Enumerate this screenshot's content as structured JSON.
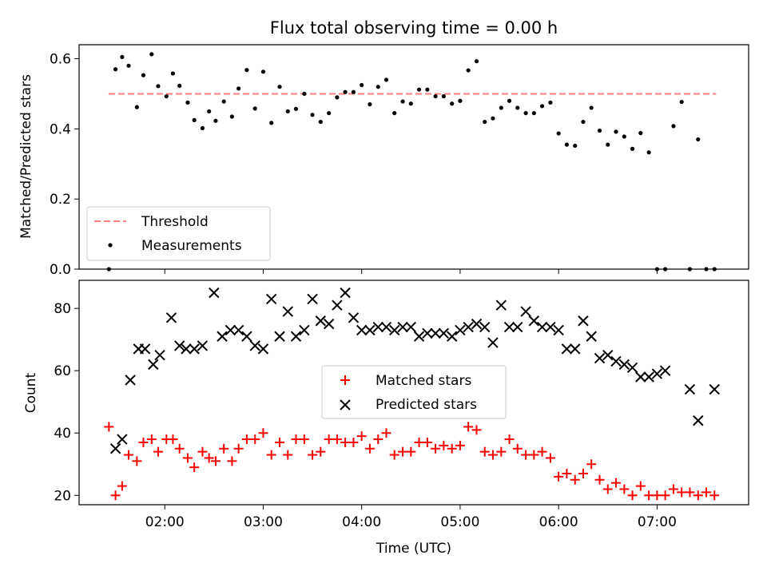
{
  "title": "Flux total observing time = 0.00 h",
  "chart_data": [
    {
      "type": "scatter",
      "ylabel": "Matched/Predicted stars",
      "xlabel": "",
      "xlim": [
        1.13,
        7.93
      ],
      "ylim": [
        0.0,
        0.64
      ],
      "yticks": [
        0.0,
        0.2,
        0.4,
        0.6
      ],
      "ytick_labels": [
        "0.0",
        "0.2",
        "0.4",
        "0.6"
      ],
      "legend_position": "lower-left",
      "threshold": {
        "name": "Threshold",
        "value": 0.5,
        "x": [
          1.43,
          7.6
        ],
        "color": "#ff7f7f",
        "style": "dashed"
      },
      "series": [
        {
          "name": "Measurements",
          "color": "#000000",
          "x": [
            1.433,
            1.5,
            1.567,
            1.633,
            1.717,
            1.783,
            1.867,
            1.933,
            2.017,
            2.083,
            2.15,
            2.233,
            2.3,
            2.383,
            2.45,
            2.517,
            2.6,
            2.683,
            2.75,
            2.833,
            2.917,
            3.0,
            3.083,
            3.167,
            3.25,
            3.333,
            3.417,
            3.5,
            3.583,
            3.667,
            3.75,
            3.833,
            3.917,
            4.0,
            4.083,
            4.167,
            4.25,
            4.333,
            4.417,
            4.5,
            4.583,
            4.667,
            4.75,
            4.833,
            4.917,
            5.0,
            5.083,
            5.167,
            5.25,
            5.333,
            5.417,
            5.5,
            5.583,
            5.667,
            5.75,
            5.833,
            5.917,
            6.0,
            6.083,
            6.167,
            6.25,
            6.333,
            6.417,
            6.5,
            6.583,
            6.667,
            6.75,
            6.833,
            6.917,
            7.0,
            7.083,
            7.167,
            7.25,
            7.333,
            7.417,
            7.5,
            7.583
          ],
          "y": [
            0.0,
            0.57,
            0.605,
            0.58,
            0.462,
            0.553,
            0.613,
            0.522,
            0.493,
            0.558,
            0.523,
            0.475,
            0.425,
            0.402,
            0.45,
            0.423,
            0.478,
            0.435,
            0.515,
            0.568,
            0.458,
            0.563,
            0.417,
            0.52,
            0.45,
            0.457,
            0.5,
            0.44,
            0.42,
            0.445,
            0.49,
            0.505,
            0.505,
            0.525,
            0.47,
            0.52,
            0.54,
            0.445,
            0.478,
            0.472,
            0.512,
            0.512,
            0.493,
            0.493,
            0.472,
            0.48,
            0.567,
            0.593,
            0.42,
            0.43,
            0.46,
            0.48,
            0.46,
            0.445,
            0.445,
            0.465,
            0.475,
            0.387,
            0.355,
            0.352,
            0.42,
            0.46,
            0.395,
            0.355,
            0.392,
            0.378,
            0.343,
            0.388,
            0.333,
            0.0,
            0.0,
            0.408,
            0.477,
            0.0,
            0.37,
            0.0,
            0.0
          ]
        }
      ]
    },
    {
      "type": "scatter",
      "ylabel": "Count",
      "xlabel": "Time (UTC)",
      "xlim": [
        1.13,
        7.93
      ],
      "ylim": [
        17,
        89
      ],
      "yticks": [
        20,
        40,
        60,
        80
      ],
      "ytick_labels": [
        "20",
        "40",
        "60",
        "80"
      ],
      "xticks": [
        2,
        3,
        4,
        5,
        6,
        7
      ],
      "xtick_labels": [
        "02:00",
        "03:00",
        "04:00",
        "05:00",
        "06:00",
        "07:00"
      ],
      "legend_position": "center",
      "series": [
        {
          "name": "Matched stars",
          "color": "#ff0000",
          "marker": "plus",
          "x": [
            1.433,
            1.5,
            1.567,
            1.633,
            1.717,
            1.783,
            1.867,
            1.933,
            2.017,
            2.083,
            2.15,
            2.233,
            2.3,
            2.383,
            2.45,
            2.517,
            2.6,
            2.683,
            2.75,
            2.833,
            2.917,
            3.0,
            3.083,
            3.167,
            3.25,
            3.333,
            3.417,
            3.5,
            3.583,
            3.667,
            3.75,
            3.833,
            3.917,
            4.0,
            4.083,
            4.167,
            4.25,
            4.333,
            4.417,
            4.5,
            4.583,
            4.667,
            4.75,
            4.833,
            4.917,
            5.0,
            5.083,
            5.167,
            5.25,
            5.333,
            5.417,
            5.5,
            5.583,
            5.667,
            5.75,
            5.833,
            5.917,
            6.0,
            6.083,
            6.167,
            6.25,
            6.333,
            6.417,
            6.5,
            6.583,
            6.667,
            6.75,
            6.833,
            6.917,
            7.0,
            7.083,
            7.167,
            7.25,
            7.333,
            7.417,
            7.5,
            7.583
          ],
          "y": [
            42,
            20,
            23,
            33,
            31,
            37,
            38,
            34,
            38,
            38,
            35,
            32,
            29,
            34,
            32,
            31,
            35,
            31,
            35,
            38,
            38,
            40,
            33,
            37,
            33,
            38,
            38,
            33,
            34,
            38,
            38,
            37,
            37,
            39,
            35,
            38,
            40,
            33,
            34,
            34,
            37,
            37,
            35,
            36,
            35,
            36,
            42,
            41,
            34,
            33,
            34,
            38,
            35,
            33,
            33,
            34,
            32,
            26,
            27,
            25,
            27,
            30,
            25,
            22,
            24,
            22,
            20,
            23,
            20,
            20,
            20,
            22,
            21,
            21,
            20,
            21,
            20
          ]
        },
        {
          "name": "Predicted stars",
          "color": "#000000",
          "marker": "x",
          "x": [
            1.5,
            1.567,
            1.65,
            1.733,
            1.8,
            1.883,
            1.95,
            2.067,
            2.15,
            2.217,
            2.3,
            2.383,
            2.5,
            2.583,
            2.667,
            2.75,
            2.833,
            2.917,
            3.0,
            3.083,
            3.167,
            3.25,
            3.333,
            3.417,
            3.5,
            3.583,
            3.667,
            3.75,
            3.833,
            3.917,
            4.0,
            4.083,
            4.167,
            4.25,
            4.333,
            4.417,
            4.5,
            4.583,
            4.667,
            4.75,
            4.833,
            4.917,
            5.0,
            5.083,
            5.167,
            5.25,
            5.333,
            5.417,
            5.5,
            5.583,
            5.667,
            5.75,
            5.833,
            5.917,
            6.0,
            6.083,
            6.167,
            6.25,
            6.333,
            6.417,
            6.5,
            6.583,
            6.667,
            6.75,
            6.833,
            6.917,
            7.0,
            7.083,
            7.333,
            7.417,
            7.583
          ],
          "y": [
            35,
            38,
            57,
            67,
            67,
            62,
            65,
            77,
            68,
            67,
            67,
            68,
            85,
            71,
            73,
            73,
            71,
            68,
            67,
            83,
            71,
            79,
            71,
            73,
            83,
            76,
            75,
            81,
            85,
            77,
            73,
            73,
            74,
            74,
            73,
            74,
            74,
            71,
            72,
            72,
            72,
            71,
            73,
            74,
            75,
            74,
            69,
            81,
            74,
            74,
            79,
            76,
            74,
            74,
            73,
            67,
            67,
            76,
            71,
            64,
            65,
            63,
            62,
            61,
            58,
            58,
            59,
            60,
            54,
            44,
            54
          ]
        }
      ]
    }
  ]
}
